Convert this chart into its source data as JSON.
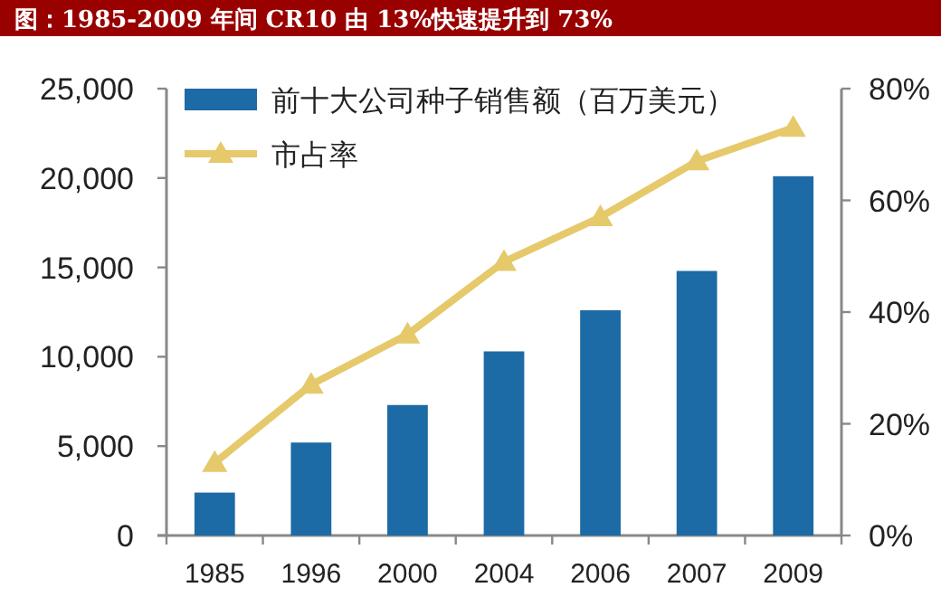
{
  "chart_data": {
    "type": "bar",
    "title": "图：1985-2009 年间 CR10 由 13%快速提升到 73%",
    "categories": [
      "1985",
      "1996",
      "2000",
      "2004",
      "2006",
      "2007",
      "2009"
    ],
    "series": [
      {
        "name": "前十大公司种子销售额（百万美元）",
        "color": "#1c6aa6",
        "values": [
          2400,
          5200,
          7300,
          10300,
          12600,
          14800,
          20100
        ]
      },
      {
        "name": "市占率",
        "type": "line",
        "axis": "y2",
        "color": "#e6c96b",
        "marker": "triangle",
        "values": [
          13,
          27,
          36,
          49,
          57,
          67,
          73
        ]
      }
    ],
    "ylim": [
      0,
      25000
    ],
    "yticks": [
      0,
      {
        "value": 5000,
        "label": "5,000"
      },
      {
        "value": 10000,
        "label": "10,000"
      },
      {
        "value": 15000,
        "label": "15,000"
      },
      {
        "value": 20000,
        "label": "20,000"
      },
      {
        "value": 25000,
        "label": "25,000"
      }
    ],
    "y2lim": [
      0,
      80
    ],
    "y2ticks": [
      {
        "value": 0,
        "label": "0%"
      },
      {
        "value": 20,
        "label": "20%"
      },
      {
        "value": 40,
        "label": "40%"
      },
      {
        "value": 60,
        "label": "60%"
      },
      {
        "value": 80,
        "label": "80%"
      }
    ],
    "legend": "top left"
  }
}
